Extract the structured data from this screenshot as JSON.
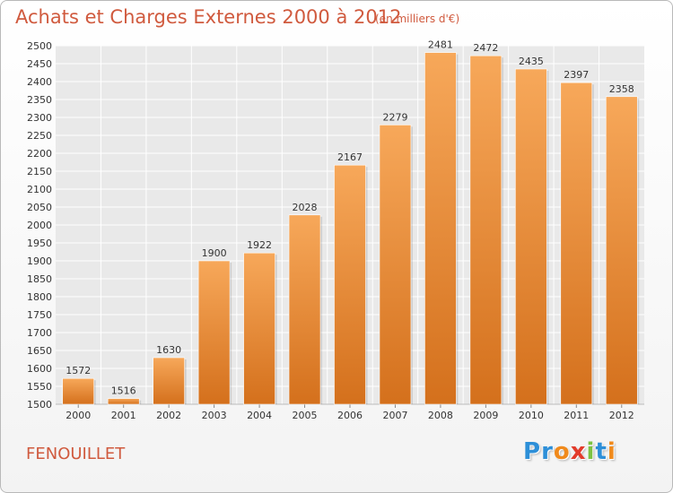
{
  "chart_data": {
    "type": "bar",
    "title": "Achats et Charges Externes 2000 à 2012",
    "subtitle": "(en milliers d'€)",
    "categories": [
      "2000",
      "2001",
      "2002",
      "2003",
      "2004",
      "2005",
      "2006",
      "2007",
      "2008",
      "2009",
      "2010",
      "2011",
      "2012"
    ],
    "values": [
      1572,
      1516,
      1630,
      1900,
      1922,
      2028,
      2167,
      2279,
      2481,
      2472,
      2435,
      2397,
      2358
    ],
    "ylim": [
      1500,
      2500
    ],
    "ytick_step": 50,
    "grid": true,
    "bar_color": "#f0923e",
    "xlabel": "",
    "ylabel": ""
  },
  "footer": {
    "commune": "FENOUILLET",
    "logo_letters": [
      {
        "char": "P",
        "color": "#2d8fd8"
      },
      {
        "char": "r",
        "color": "#2d8fd8"
      },
      {
        "char": "o",
        "color": "#f08a1c"
      },
      {
        "char": "x",
        "color": "#e23b2a"
      },
      {
        "char": "i",
        "color": "#7cc242"
      },
      {
        "char": "t",
        "color": "#2d8fd8"
      },
      {
        "char": "i",
        "color": "#f08a1c"
      }
    ]
  }
}
